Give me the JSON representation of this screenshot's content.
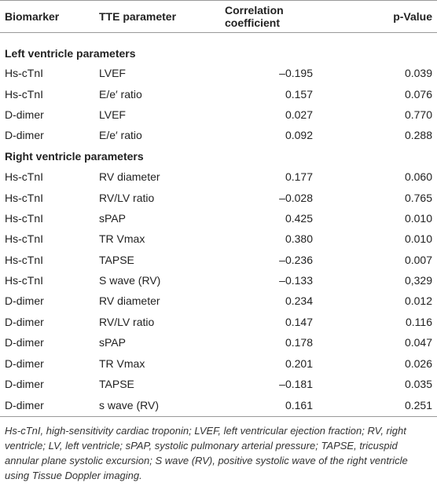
{
  "table": {
    "header": [
      "Biomarker",
      "TTE parameter",
      "Correlation coefficient",
      "p-Value"
    ],
    "sections": [
      {
        "title": "Left ventricle parameters",
        "rows": [
          [
            "Hs-cTnI",
            "LVEF",
            "–0.195",
            "0.039"
          ],
          [
            "Hs-cTnI",
            "E/e′ ratio",
            "0.157",
            "0.076"
          ],
          [
            "D-dimer",
            "LVEF",
            "0.027",
            "0.770"
          ],
          [
            "D-dimer",
            "E/e′ ratio",
            "0.092",
            "0.288"
          ]
        ]
      },
      {
        "title": "Right ventricle parameters",
        "rows": [
          [
            "Hs-cTnI",
            "RV diameter",
            "0.177",
            "0.060"
          ],
          [
            "Hs-cTnI",
            "RV/LV ratio",
            "–0.028",
            "0.765"
          ],
          [
            "Hs-cTnI",
            "sPAP",
            "0.425",
            "0.010"
          ],
          [
            "Hs-cTnI",
            "TR Vmax",
            "0.380",
            "0.010"
          ],
          [
            "Hs-cTnI",
            "TAPSE",
            "–0.236",
            "0.007"
          ],
          [
            "Hs-cTnI",
            "S wave (RV)",
            "–0.133",
            "0,329"
          ],
          [
            "D-dimer",
            "RV diameter",
            "0.234",
            "0.012"
          ],
          [
            "D-dimer",
            "RV/LV ratio",
            "0.147",
            "0.116"
          ],
          [
            "D-dimer",
            "sPAP",
            "0.178",
            "0.047"
          ],
          [
            "D-dimer",
            "TR Vmax",
            "0.201",
            "0.026"
          ],
          [
            "D-dimer",
            "TAPSE",
            "–0.181",
            "0.035"
          ],
          [
            "D-dimer",
            "s wave (RV)",
            "0.161",
            "0.251"
          ]
        ]
      }
    ]
  },
  "footnote": "Hs-cTnI, high-sensitivity cardiac troponin; LVEF, left ventricular ejection fraction; RV, right ventricle; LV, left ventricle; sPAP, systolic pulmonary arterial pressure; TAPSE, tricuspid annular plane systolic excursion; S wave (RV), positive systolic wave of the right ventricle using Tissue Doppler imaging."
}
